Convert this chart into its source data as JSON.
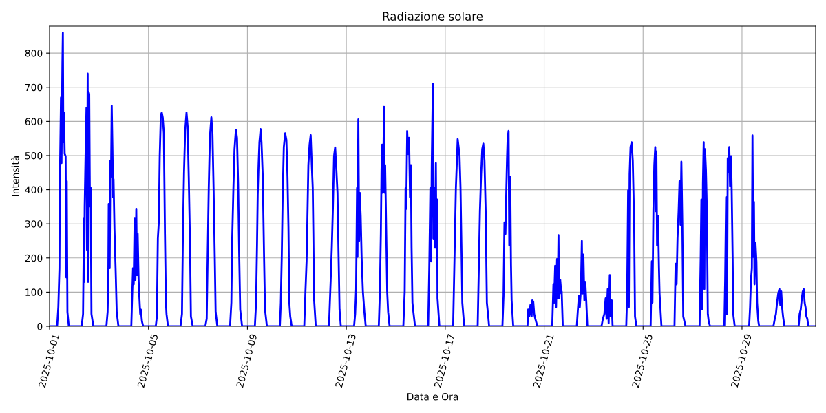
{
  "chart_data": {
    "type": "line",
    "title": "Radiazione solare",
    "xlabel": "Data e Ora",
    "ylabel": "Intensità",
    "x": [
      "2025-10-01T00:00",
      "2025-10-01T07:20",
      "2025-10-01T08:30",
      "2025-10-01T09:35",
      "2025-10-01T10:00",
      "2025-10-01T11:05",
      "2025-10-01T11:35",
      "2025-10-01T12:30",
      "2025-10-01T12:55",
      "2025-10-01T13:20",
      "2025-10-01T14:00",
      "2025-10-01T14:40",
      "2025-10-01T15:35",
      "2025-10-01T16:15",
      "2025-10-01T16:40",
      "2025-10-01T17:20",
      "2025-10-01T18:40",
      "2025-10-02T07:10",
      "2025-10-02T08:30",
      "2025-10-02T09:25",
      "2025-10-02T09:40",
      "2025-10-02T10:05",
      "2025-10-02T11:10",
      "2025-10-02T11:50",
      "2025-10-02T12:20",
      "2025-10-02T13:00",
      "2025-10-02T13:25",
      "2025-10-02T13:50",
      "2025-10-02T14:30",
      "2025-10-02T15:10",
      "2025-10-02T15:55",
      "2025-10-02T16:40",
      "2025-10-02T18:30",
      "2025-10-03T07:10",
      "2025-10-03T08:20",
      "2025-10-03T09:00",
      "2025-10-03T09:25",
      "2025-10-03T10:20",
      "2025-10-03T11:00",
      "2025-10-03T11:40",
      "2025-10-03T12:20",
      "2025-10-03T13:00",
      "2025-10-03T13:40",
      "2025-10-03T14:05",
      "2025-10-03T15:00",
      "2025-10-03T16:05",
      "2025-10-03T17:10",
      "2025-10-03T18:50",
      "2025-10-04T07:20",
      "2025-10-04T08:10",
      "2025-10-04T09:00",
      "2025-10-04T09:40",
      "2025-10-04T10:35",
      "2025-10-04T11:20",
      "2025-10-04T12:10",
      "2025-10-04T12:50",
      "2025-10-04T13:30",
      "2025-10-04T14:25",
      "2025-10-04T15:05",
      "2025-10-04T16:00",
      "2025-10-04T16:35",
      "2025-10-04T17:40",
      "2025-10-04T18:50",
      "2025-10-05T07:05",
      "2025-10-05T08:10",
      "2025-10-05T09:05",
      "2025-10-05T10:00",
      "2025-10-05T10:55",
      "2025-10-05T12:00",
      "2025-10-05T12:55",
      "2025-10-05T13:50",
      "2025-10-05T14:55",
      "2025-10-05T16:00",
      "2025-10-05T16:55",
      "2025-10-05T17:30",
      "2025-10-05T18:55",
      "2025-10-06T07:05",
      "2025-10-06T08:30",
      "2025-10-06T09:25",
      "2025-10-06T10:30",
      "2025-10-06T11:35",
      "2025-10-06T12:55",
      "2025-10-06T14:00",
      "2025-10-06T15:05",
      "2025-10-06T16:20",
      "2025-10-06T17:10",
      "2025-10-06T18:55",
      "2025-10-07T07:10",
      "2025-10-07T08:30",
      "2025-10-07T09:25",
      "2025-10-07T10:30",
      "2025-10-07T11:35",
      "2025-10-07T13:00",
      "2025-10-07T14:05",
      "2025-10-07T15:10",
      "2025-10-07T16:20",
      "2025-10-07T17:10",
      "2025-10-07T18:50",
      "2025-10-08T07:10",
      "2025-10-08T08:25",
      "2025-10-08T09:10",
      "2025-10-08T10:25",
      "2025-10-08T11:30",
      "2025-10-08T12:50",
      "2025-10-08T13:55",
      "2025-10-08T15:00",
      "2025-10-08T16:05",
      "2025-10-08T17:00",
      "2025-10-08T18:50",
      "2025-10-09T07:15",
      "2025-10-09T08:25",
      "2025-10-09T09:20",
      "2025-10-09T10:00",
      "2025-10-09T10:50",
      "2025-10-09T11:40",
      "2025-10-09T12:50",
      "2025-10-09T13:40",
      "2025-10-09T14:55",
      "2025-10-09T16:10",
      "2025-10-09T17:05",
      "2025-10-09T18:55",
      "2025-10-10T07:30",
      "2025-10-10T08:25",
      "2025-10-10T09:20",
      "2025-10-10T10:10",
      "2025-10-10T11:20",
      "2025-10-10T12:40",
      "2025-10-10T13:50",
      "2025-10-10T14:55",
      "2025-10-10T15:50",
      "2025-10-10T16:40",
      "2025-10-10T17:35",
      "2025-10-10T19:00",
      "2025-10-11T07:10",
      "2025-10-11T08:20",
      "2025-10-11T09:25",
      "2025-10-11T10:00",
      "2025-10-11T11:10",
      "2025-10-11T12:20",
      "2025-10-11T13:25",
      "2025-10-11T14:30",
      "2025-10-11T15:25",
      "2025-10-11T16:00",
      "2025-10-11T16:40",
      "2025-10-11T18:20",
      "2025-10-12T07:10",
      "2025-10-12T08:50",
      "2025-10-12T09:55",
      "2025-10-12T11:00",
      "2025-10-12T12:05",
      "2025-10-12T13:10",
      "2025-10-12T14:20",
      "2025-10-12T15:25",
      "2025-10-12T16:30",
      "2025-10-12T17:25",
      "2025-10-12T18:40",
      "2025-10-13T07:30",
      "2025-10-13T08:35",
      "2025-10-13T09:30",
      "2025-10-13T10:25",
      "2025-10-13T10:50",
      "2025-10-13T11:40",
      "2025-10-13T12:25",
      "2025-10-13T13:00",
      "2025-10-13T13:55",
      "2025-10-13T14:50",
      "2025-10-13T16:05",
      "2025-10-13T17:30",
      "2025-10-13T18:50",
      "2025-10-14T07:30",
      "2025-10-14T08:35",
      "2025-10-14T09:30",
      "2025-10-14T10:10",
      "2025-10-14T10:50",
      "2025-10-14T11:30",
      "2025-10-14T12:10",
      "2025-10-14T12:35",
      "2025-10-14T13:05",
      "2025-10-14T13:40",
      "2025-10-14T14:35",
      "2025-10-14T15:40",
      "2025-10-14T16:35",
      "2025-10-14T18:00",
      "2025-10-15T07:20",
      "2025-10-15T08:40",
      "2025-10-15T09:30",
      "2025-10-15T10:10",
      "2025-10-15T11:05",
      "2025-10-15T12:00",
      "2025-10-15T12:55",
      "2025-10-15T13:50",
      "2025-10-15T14:40",
      "2025-10-15T15:20",
      "2025-10-15T16:10",
      "2025-10-15T17:05",
      "2025-10-15T18:40",
      "2025-10-16T07:25",
      "2025-10-16T08:30",
      "2025-10-16T09:35",
      "2025-10-16T10:15",
      "2025-10-16T10:55",
      "2025-10-16T12:00",
      "2025-10-16T12:30",
      "2025-10-16T13:10",
      "2025-10-16T14:05",
      "2025-10-16T14:55",
      "2025-10-16T15:25",
      "2025-10-16T16:05",
      "2025-10-16T16:30",
      "2025-10-16T18:20",
      "2025-10-17T07:40",
      "2025-10-17T08:50",
      "2025-10-17T09:40",
      "2025-10-17T10:20",
      "2025-10-17T11:10",
      "2025-10-17T12:05",
      "2025-10-17T13:00",
      "2025-10-17T13:55",
      "2025-10-17T14:50",
      "2025-10-17T15:55",
      "2025-10-17T16:35",
      "2025-10-17T18:25",
      "2025-10-18T07:30",
      "2025-10-18T08:35",
      "2025-10-18T09:40",
      "2025-10-18T10:50",
      "2025-10-18T11:55",
      "2025-10-18T13:00",
      "2025-10-18T14:05",
      "2025-10-18T15:15",
      "2025-10-18T16:25",
      "2025-10-18T17:30",
      "2025-10-18T18:35",
      "2025-10-19T07:30",
      "2025-10-19T08:35",
      "2025-10-19T09:30",
      "2025-10-19T10:25",
      "2025-10-19T11:20",
      "2025-10-19T12:00",
      "2025-10-19T12:35",
      "2025-10-19T13:30",
      "2025-10-19T14:10",
      "2025-10-19T15:05",
      "2025-10-19T15:50",
      "2025-10-19T16:25",
      "2025-10-19T18:00",
      "2025-10-20T07:50",
      "2025-10-20T08:30",
      "2025-10-20T09:35",
      "2025-10-20T10:40",
      "2025-10-20T11:50",
      "2025-10-20T12:30",
      "2025-10-20T13:25",
      "2025-10-20T14:20",
      "2025-10-20T15:25",
      "2025-10-20T17:25",
      "2025-10-21T07:50",
      "2025-10-21T09:00",
      "2025-10-21T09:35",
      "2025-10-21T10:40",
      "2025-10-21T11:35",
      "2025-10-21T12:30",
      "2025-10-21T13:10",
      "2025-10-21T13:55",
      "2025-10-21T14:30",
      "2025-10-21T15:35",
      "2025-10-21T16:40",
      "2025-10-21T17:00",
      "2025-10-21T18:05",
      "2025-10-22T07:40",
      "2025-10-22T08:35",
      "2025-10-22T09:40",
      "2025-10-22T10:35",
      "2025-10-22T11:40",
      "2025-10-22T12:35",
      "2025-10-22T13:10",
      "2025-10-22T14:05",
      "2025-10-22T15:00",
      "2025-10-22T15:55",
      "2025-10-22T16:50",
      "2025-10-22T17:55",
      "2025-10-23T07:40",
      "2025-10-23T09:00",
      "2025-10-23T10:25",
      "2025-10-23T11:40",
      "2025-10-23T12:35",
      "2025-10-23T13:40",
      "2025-10-23T14:35",
      "2025-10-23T15:40",
      "2025-10-23T16:35",
      "2025-10-23T17:30",
      "2025-10-23T18:25",
      "2025-10-24T07:40",
      "2025-10-24T08:35",
      "2025-10-24T09:30",
      "2025-10-24T10:10",
      "2025-10-24T10:55",
      "2025-10-24T11:50",
      "2025-10-24T12:55",
      "2025-10-24T14:00",
      "2025-10-24T15:20",
      "2025-10-24T16:10",
      "2025-10-24T17:30",
      "2025-10-25T07:20",
      "2025-10-25T08:30",
      "2025-10-25T09:05",
      "2025-10-25T10:00",
      "2025-10-25T10:55",
      "2025-10-25T11:50",
      "2025-10-25T12:10",
      "2025-10-25T12:55",
      "2025-10-25T13:35",
      "2025-10-25T14:30",
      "2025-10-25T15:25",
      "2025-10-25T16:00",
      "2025-10-25T17:50",
      "2025-10-26T06:30",
      "2025-10-26T07:35",
      "2025-10-26T08:30",
      "2025-10-26T09:25",
      "2025-10-26T10:30",
      "2025-10-26T11:25",
      "2025-10-26T12:20",
      "2025-10-26T13:10",
      "2025-10-26T14:05",
      "2025-10-26T15:00",
      "2025-10-26T16:05",
      "2025-10-26T17:10",
      "2025-10-27T06:50",
      "2025-10-27T07:55",
      "2025-10-27T08:35",
      "2025-10-27T09:30",
      "2025-10-27T10:05",
      "2025-10-27T10:50",
      "2025-10-27T11:30",
      "2025-10-27T12:05",
      "2025-10-27T13:00",
      "2025-10-27T13:55",
      "2025-10-27T14:50",
      "2025-10-27T15:40",
      "2025-10-27T17:00",
      "2025-10-28T06:50",
      "2025-10-28T07:40",
      "2025-10-28T08:35",
      "2025-10-28T09:30",
      "2025-10-28T10:10",
      "2025-10-28T11:05",
      "2025-10-28T11:40",
      "2025-10-28T12:25",
      "2025-10-28T13:20",
      "2025-10-28T14:00",
      "2025-10-28T14:55",
      "2025-10-28T15:30",
      "2025-10-28T16:55",
      "2025-10-29T06:55",
      "2025-10-29T07:50",
      "2025-10-29T08:40",
      "2025-10-29T09:35",
      "2025-10-29T10:10",
      "2025-10-29T10:55",
      "2025-10-29T11:35",
      "2025-10-29T12:10",
      "2025-10-29T13:05",
      "2025-10-29T14:00",
      "2025-10-29T14:40",
      "2025-10-29T15:50",
      "2025-10-29T16:40",
      "2025-10-30T06:30",
      "2025-10-30T07:50",
      "2025-10-30T08:55",
      "2025-10-30T10:00",
      "2025-10-30T11:10",
      "2025-10-30T12:20",
      "2025-10-30T13:10",
      "2025-10-30T14:05",
      "2025-10-30T14:55",
      "2025-10-30T15:50",
      "2025-10-30T17:10",
      "2025-10-31T07:00",
      "2025-10-31T07:55",
      "2025-10-31T09:00",
      "2025-10-31T10:05",
      "2025-10-31T11:00",
      "2025-10-31T11:55",
      "2025-10-31T12:50",
      "2025-10-31T13:40",
      "2025-10-31T14:30",
      "2025-10-31T15:25",
      "2025-10-31T16:20",
      "2025-10-31T23:30"
    ],
    "series": [
      {
        "color": "#0000ff",
        "values": [
          0,
          0,
          56,
          170,
          418,
          670,
          478,
          774,
          860,
          539,
          626,
          505,
          498,
          143,
          425,
          42,
          0,
          0,
          36,
          317,
          130,
          351,
          539,
          640,
          224,
          740,
          130,
          687,
          680,
          351,
          405,
          36,
          0,
          0,
          42,
          136,
          358,
          170,
          485,
          438,
          646,
          525,
          378,
          431,
          284,
          170,
          42,
          0,
          0,
          89,
          170,
          123,
          317,
          136,
          344,
          150,
          271,
          136,
          89,
          36,
          49,
          15,
          0,
          0,
          29,
          257,
          304,
          498,
          619,
          626,
          612,
          566,
          270,
          69,
          36,
          0,
          0,
          36,
          270,
          452,
          572,
          626,
          586,
          438,
          237,
          29,
          0,
          0,
          22,
          203,
          405,
          552,
          612,
          566,
          405,
          203,
          42,
          0,
          0,
          69,
          244,
          405,
          519,
          576,
          552,
          418,
          203,
          49,
          0,
          0,
          69,
          237,
          385,
          472,
          539,
          578,
          539,
          438,
          203,
          49,
          0,
          0,
          69,
          203,
          371,
          525,
          565,
          546,
          438,
          291,
          69,
          29,
          0,
          0,
          102,
          190,
          277,
          472,
          532,
          560,
          472,
          405,
          270,
          82,
          0,
          0,
          136,
          230,
          351,
          498,
          524,
          458,
          391,
          203,
          49,
          0,
          0,
          36,
          109,
          405,
          203,
          606,
          250,
          391,
          324,
          203,
          102,
          42,
          0,
          0,
          102,
          270,
          458,
          532,
          391,
          539,
          643,
          391,
          472,
          304,
          102,
          42,
          0,
          0,
          102,
          405,
          344,
          572,
          505,
          552,
          378,
          472,
          230,
          69,
          42,
          0,
          0,
          170,
          405,
          190,
          472,
          710,
          257,
          405,
          230,
          478,
          230,
          371,
          82,
          0,
          0,
          177,
          304,
          405,
          472,
          548,
          525,
          498,
          405,
          203,
          69,
          0,
          0,
          170,
          337,
          445,
          519,
          535,
          485,
          337,
          69,
          36,
          0,
          0,
          89,
          304,
          270,
          405,
          492,
          552,
          572,
          237,
          438,
          177,
          76,
          0,
          0,
          49,
          29,
          62,
          29,
          76,
          72,
          36,
          22,
          0,
          0,
          123,
          69,
          177,
          56,
          197,
          82,
          267,
          82,
          136,
          96,
          102,
          0,
          0,
          42,
          89,
          56,
          109,
          250,
          96,
          210,
          76,
          130,
          76,
          0,
          0,
          22,
          36,
          82,
          22,
          109,
          9,
          150,
          29,
          76,
          0,
          0,
          102,
          398,
          56,
          445,
          525,
          539,
          485,
          304,
          29,
          0,
          0,
          190,
          69,
          337,
          472,
          525,
          337,
          512,
          237,
          324,
          170,
          96,
          0,
          0,
          183,
          123,
          257,
          337,
          425,
          297,
          482,
          304,
          29,
          15,
          0,
          0,
          203,
          371,
          49,
          418,
          539,
          109,
          519,
          458,
          337,
          36,
          15,
          0,
          0,
          136,
          378,
          36,
          492,
          452,
          525,
          411,
          498,
          398,
          203,
          36,
          0,
          0,
          56,
          136,
          170,
          559,
          203,
          364,
          123,
          244,
          190,
          69,
          15,
          0,
          0,
          22,
          36,
          69,
          96,
          109,
          62,
          102,
          56,
          29,
          0,
          0,
          36,
          49,
          82,
          102,
          109,
          69,
          56,
          29,
          22,
          0,
          0
        ]
      }
    ],
    "xlim": [
      "2025-10-01T00:00",
      "2025-10-31T23:30"
    ],
    "xticks": [
      "2025-10-01",
      "2025-10-05",
      "2025-10-09",
      "2025-10-13",
      "2025-10-17",
      "2025-10-21",
      "2025-10-25",
      "2025-10-29"
    ],
    "ylim": [
      0,
      879
    ],
    "yticks": [
      0,
      100,
      200,
      300,
      400,
      500,
      600,
      700,
      800
    ],
    "grid": true
  }
}
